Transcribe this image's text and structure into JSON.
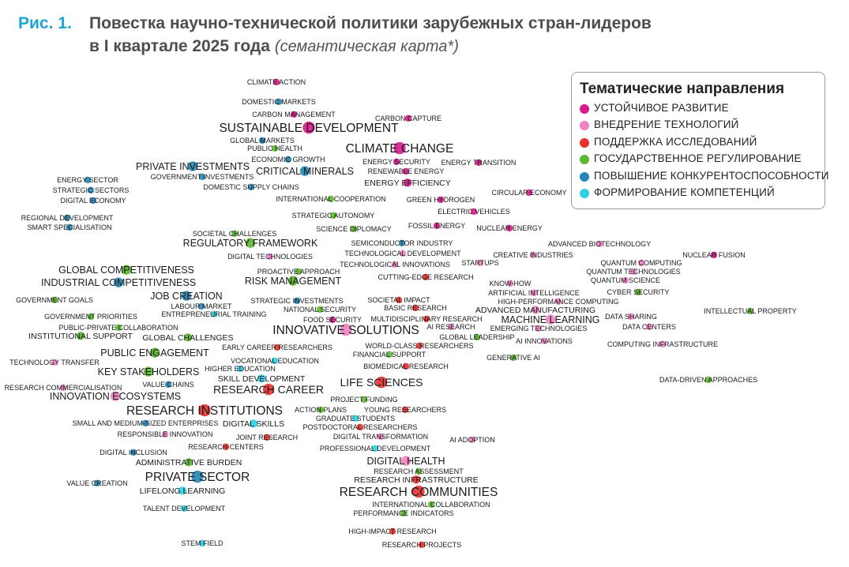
{
  "figure": {
    "number": "Рис. 1.",
    "title_line1": "Повестка научно-технической политики зарубежных стран-лидеров",
    "title_line2": "в I квартале 2025 года",
    "subtitle": "(семантическая карта*)"
  },
  "legend": {
    "title": "Тематические направления",
    "items": [
      {
        "key": "sus",
        "label": "УСТОЙЧИВОЕ РАЗВИТИЕ",
        "color": "#d6198c"
      },
      {
        "key": "tech",
        "label": "ВНЕДРЕНИЕ ТЕХНОЛОГИЙ",
        "color": "#ee82c2"
      },
      {
        "key": "res",
        "label": "ПОДДЕРЖКА ИССЛЕДОВАНИЙ",
        "color": "#e8302c"
      },
      {
        "key": "gov",
        "label": "ГОСУДАРСТВЕННОЕ РЕГУЛИРОВАНИЕ",
        "color": "#5cb82e"
      },
      {
        "key": "comp",
        "label": "ПОВЫШЕНИЕ КОНКУРЕНТОСПОСОБНОСТИ",
        "color": "#2586b5"
      },
      {
        "key": "skill",
        "label": "ФОРМИРОВАНИЕ КОМПЕТЕНЦИЙ",
        "color": "#2ecfe0"
      }
    ]
  },
  "nodes": [
    {
      "label": "CLIMATE ACTION",
      "cat": "sus",
      "size": 1
    },
    {
      "label": "DOMESTIC MARKETS",
      "cat": "comp",
      "size": 1
    },
    {
      "label": "CARBON MANAGEMENT",
      "cat": "sus",
      "size": 1
    },
    {
      "label": "CARBON CAPTURE",
      "cat": "sus",
      "size": 1
    },
    {
      "label": "SUSTAINABLE DEVELOPMENT",
      "cat": "sus",
      "size": 3
    },
    {
      "label": "GLOBAL MARKETS",
      "cat": "comp",
      "size": 1
    },
    {
      "label": "PUBLIC HEALTH",
      "cat": "gov",
      "size": 1
    },
    {
      "label": "ECONOMIC GROWTH",
      "cat": "comp",
      "size": 1
    },
    {
      "label": "CLIMATE CHANGE",
      "cat": "sus",
      "size": 3
    },
    {
      "label": "ENERGY SECURITY",
      "cat": "sus",
      "size": 1
    },
    {
      "label": "ENERGY TRANSITION",
      "cat": "sus",
      "size": 1
    },
    {
      "label": "RENEWABLE ENERGY",
      "cat": "sus",
      "size": 1
    },
    {
      "label": "ENERGY EFFICIENCY",
      "cat": "sus",
      "size": 1.5
    },
    {
      "label": "PRIVATE INVESTMENTS",
      "cat": "comp",
      "size": 2
    },
    {
      "label": "CRITICAL MINERALS",
      "cat": "comp",
      "size": 2
    },
    {
      "label": "GOVERNMENT INVESTMENTS",
      "cat": "comp",
      "size": 1
    },
    {
      "label": "DOMESTIC SUPPLY CHAINS",
      "cat": "comp",
      "size": 1
    },
    {
      "label": "ENERGY SECTOR",
      "cat": "comp",
      "size": 1
    },
    {
      "label": "STRATEGIC SECTORS",
      "cat": "comp",
      "size": 1
    },
    {
      "label": "DIGITAL ECONOMY",
      "cat": "comp",
      "size": 1
    },
    {
      "label": "INTERNATIONAL COOPERATION",
      "cat": "gov",
      "size": 1
    },
    {
      "label": "GREEN HYDROGEN",
      "cat": "sus",
      "size": 1
    },
    {
      "label": "CIRCULAR ECONOMY",
      "cat": "sus",
      "size": 1
    },
    {
      "label": "STRATEGIC AUTONOMY",
      "cat": "gov",
      "size": 1
    },
    {
      "label": "ELECTRIC VEHICLES",
      "cat": "sus",
      "size": 1
    },
    {
      "label": "REGIONAL DEVELOPMENT",
      "cat": "comp",
      "size": 1
    },
    {
      "label": "SMART SPECIALISATION",
      "cat": "comp",
      "size": 1
    },
    {
      "label": "SCIENCE DIPLOMACY",
      "cat": "gov",
      "size": 1
    },
    {
      "label": "FOSSIL ENERGY",
      "cat": "sus",
      "size": 1
    },
    {
      "label": "NUCLEAR ENERGY",
      "cat": "sus",
      "size": 1
    },
    {
      "label": "SOCIETAL CHALLENGES",
      "cat": "gov",
      "size": 1
    },
    {
      "label": "REGULATORY FRAMEWORK",
      "cat": "gov",
      "size": 2
    },
    {
      "label": "SEMICONDUCTOR INDUSTRY",
      "cat": "comp",
      "size": 1
    },
    {
      "label": "ADVANCED BIOTECHNOLOGY",
      "cat": "tech",
      "size": 1
    },
    {
      "label": "DIGITAL TECHNOLOGIES",
      "cat": "tech",
      "size": 1
    },
    {
      "label": "TECHNOLOGICAL DEVELOPMENT",
      "cat": "tech",
      "size": 1
    },
    {
      "label": "CREATIVE INDUSTRIES",
      "cat": "tech",
      "size": 1
    },
    {
      "label": "NUCLEAR FUSION",
      "cat": "sus",
      "size": 1
    },
    {
      "label": "TECHNOLOGICAL INNOVATIONS",
      "cat": "tech",
      "size": 1
    },
    {
      "label": "STARTUPS",
      "cat": "tech",
      "size": 1
    },
    {
      "label": "QUANTUM COMPUTING",
      "cat": "tech",
      "size": 1
    },
    {
      "label": "QUANTUM TECHNOLOGIES",
      "cat": "tech",
      "size": 1
    },
    {
      "label": "GLOBAL COMPETITIVENESS",
      "cat": "gov",
      "size": 2
    },
    {
      "label": "PROACTIVE APPROACH",
      "cat": "gov",
      "size": 1
    },
    {
      "label": "CUTTING-EDGE RESEARCH",
      "cat": "res",
      "size": 1
    },
    {
      "label": "QUANTUM SCIENCE",
      "cat": "tech",
      "size": 1
    },
    {
      "label": "INDUSTRIAL COMPETITIVENESS",
      "cat": "comp",
      "size": 2
    },
    {
      "label": "RISK MANAGEMENT",
      "cat": "gov",
      "size": 2
    },
    {
      "label": "KNOW-HOW",
      "cat": "tech",
      "size": 1
    },
    {
      "label": "ARTIFICIAL INTELLIGENCE",
      "cat": "tech",
      "size": 1
    },
    {
      "label": "CYBER SECURITY",
      "cat": "gov",
      "size": 1
    },
    {
      "label": "JOB CREATION",
      "cat": "comp",
      "size": 2
    },
    {
      "label": "GOVERNMENT GOALS",
      "cat": "gov",
      "size": 1
    },
    {
      "label": "STRATEGIC INVESTMENTS",
      "cat": "comp",
      "size": 1
    },
    {
      "label": "SOCIETAL IMPACT",
      "cat": "res",
      "size": 1
    },
    {
      "label": "HIGH-PERFORMANCE COMPUTING",
      "cat": "tech",
      "size": 1
    },
    {
      "label": "LABOUR MARKET",
      "cat": "comp",
      "size": 1
    },
    {
      "label": "NATIONAL SECURITY",
      "cat": "gov",
      "size": 1
    },
    {
      "label": "BASIC RESEARCH",
      "cat": "res",
      "size": 1
    },
    {
      "label": "ADVANCED MANUFACTURING",
      "cat": "tech",
      "size": 1.5
    },
    {
      "label": "ENTREPRENEURIAL TRAINING",
      "cat": "skill",
      "size": 1
    },
    {
      "label": "DATA SHARING",
      "cat": "tech",
      "size": 1
    },
    {
      "label": "INTELLECTUAL PROPERTY",
      "cat": "gov",
      "size": 1
    },
    {
      "label": "GOVERNMENT PRIORITIES",
      "cat": "gov",
      "size": 1
    },
    {
      "label": "FOOD SECURITY",
      "cat": "sus",
      "size": 1
    },
    {
      "label": "MULTIDISCIPLINARY RESEARCH",
      "cat": "res",
      "size": 1
    },
    {
      "label": "MACHINE LEARNING",
      "cat": "tech",
      "size": 2
    },
    {
      "label": "PUBLIC-PRIVATE COLLABORATION",
      "cat": "gov",
      "size": 1
    },
    {
      "label": "AI RESEARCH",
      "cat": "tech",
      "size": 1
    },
    {
      "label": "EMERGING TECHNOLOGIES",
      "cat": "tech",
      "size": 1
    },
    {
      "label": "DATA CENTERS",
      "cat": "tech",
      "size": 1
    },
    {
      "label": "INNOVATIVE SOLUTIONS",
      "cat": "tech",
      "size": 3
    },
    {
      "label": "INSTITUTIONAL SUPPORT",
      "cat": "gov",
      "size": 1.5
    },
    {
      "label": "GLOBAL CHALLENGES",
      "cat": "gov",
      "size": 1.5
    },
    {
      "label": "GLOBAL LEADERSHIP",
      "cat": "gov",
      "size": 1
    },
    {
      "label": "AI INNOVATIONS",
      "cat": "tech",
      "size": 1
    },
    {
      "label": "COMPUTING INFRASTRUCTURE",
      "cat": "tech",
      "size": 1
    },
    {
      "label": "EARLY CAREER RESEARCHERS",
      "cat": "res",
      "size": 1
    },
    {
      "label": "WORLD-CLASS RESEARCHERS",
      "cat": "res",
      "size": 1
    },
    {
      "label": "PUBLIC ENGAGEMENT",
      "cat": "gov",
      "size": 2
    },
    {
      "label": "FINANCIAL SUPPORT",
      "cat": "gov",
      "size": 1
    },
    {
      "label": "GENERATIVE AI",
      "cat": "gov",
      "size": 1
    },
    {
      "label": "TECHNOLOGY TRANSFER",
      "cat": "tech",
      "size": 1
    },
    {
      "label": "VOCATIONAL EDUCATION",
      "cat": "skill",
      "size": 1
    },
    {
      "label": "HIGHER EDUCATION",
      "cat": "skill",
      "size": 1
    },
    {
      "label": "BIOMEDICAL RESEARCH",
      "cat": "res",
      "size": 1
    },
    {
      "label": "KEY STAKEHOLDERS",
      "cat": "gov",
      "size": 2
    },
    {
      "label": "SKILL DEVELOPMENT",
      "cat": "skill",
      "size": 1.5
    },
    {
      "label": "VALUE CHAINS",
      "cat": "comp",
      "size": 1
    },
    {
      "label": "LIFE SCIENCES",
      "cat": "res",
      "size": 2.5
    },
    {
      "label": "DATA-DRIVEN APPROACHES",
      "cat": "gov",
      "size": 1
    },
    {
      "label": "RESEARCH COMMERCIALISATION",
      "cat": "tech",
      "size": 1
    },
    {
      "label": "RESEARCH CAREER",
      "cat": "res",
      "size": 2.5
    },
    {
      "label": "INNOVATION ECOSYSTEMS",
      "cat": "tech",
      "size": 2
    },
    {
      "label": "PROJECT FUNDING",
      "cat": "gov",
      "size": 1
    },
    {
      "label": "RESEARCH INSTITUTIONS",
      "cat": "res",
      "size": 3
    },
    {
      "label": "ACTION PLANS",
      "cat": "gov",
      "size": 1
    },
    {
      "label": "YOUNG RESEARCHERS",
      "cat": "res",
      "size": 1
    },
    {
      "label": "GRADUATE STUDENTS",
      "cat": "skill",
      "size": 1
    },
    {
      "label": "SMALL AND MEDIUM-SIZED ENTERPRISES",
      "cat": "comp",
      "size": 1
    },
    {
      "label": "DIGITAL SKILLS",
      "cat": "skill",
      "size": 1.5
    },
    {
      "label": "POSTDOCTORAL RESEARCHERS",
      "cat": "res",
      "size": 1
    },
    {
      "label": "RESPONSIBLE INNOVATION",
      "cat": "tech",
      "size": 1
    },
    {
      "label": "JOINT RESEARCH",
      "cat": "res",
      "size": 1
    },
    {
      "label": "DIGITAL TRANSFORMATION",
      "cat": "tech",
      "size": 1
    },
    {
      "label": "AI ADOPTION",
      "cat": "tech",
      "size": 1
    },
    {
      "label": "RESEARCH CENTERS",
      "cat": "res",
      "size": 1
    },
    {
      "label": "PROFESSIONAL DEVELOPMENT",
      "cat": "skill",
      "size": 1
    },
    {
      "label": "DIGITAL INCLUSION",
      "cat": "comp",
      "size": 1
    },
    {
      "label": "DIGITAL HEALTH",
      "cat": "tech",
      "size": 2
    },
    {
      "label": "ADMINISTRATIVE BURDEN",
      "cat": "gov",
      "size": 1.5
    },
    {
      "label": "RESEARCH ASSESSMENT",
      "cat": "gov",
      "size": 1
    },
    {
      "label": "PRIVATE SECTOR",
      "cat": "comp",
      "size": 3
    },
    {
      "label": "RESEARCH INFRASTRUCTURE",
      "cat": "res",
      "size": 1.5
    },
    {
      "label": "VALUE CREATION",
      "cat": "comp",
      "size": 1
    },
    {
      "label": "LIFELONG LEARNING",
      "cat": "skill",
      "size": 1.5
    },
    {
      "label": "RESEARCH COMMUNITIES",
      "cat": "res",
      "size": 3
    },
    {
      "label": "INTERNATIONAL COLLABORATION",
      "cat": "gov",
      "size": 1
    },
    {
      "label": "TALENT DEVELOPMENT",
      "cat": "skill",
      "size": 1
    },
    {
      "label": "PERFORMANCE INDICATORS",
      "cat": "gov",
      "size": 1
    },
    {
      "label": "HIGH-IMPACT RESEARCH",
      "cat": "res",
      "size": 1
    },
    {
      "label": "STEM FIELD",
      "cat": "skill",
      "size": 1
    },
    {
      "label": "RESEARCH PROJECTS",
      "cat": "res",
      "size": 1
    }
  ]
}
